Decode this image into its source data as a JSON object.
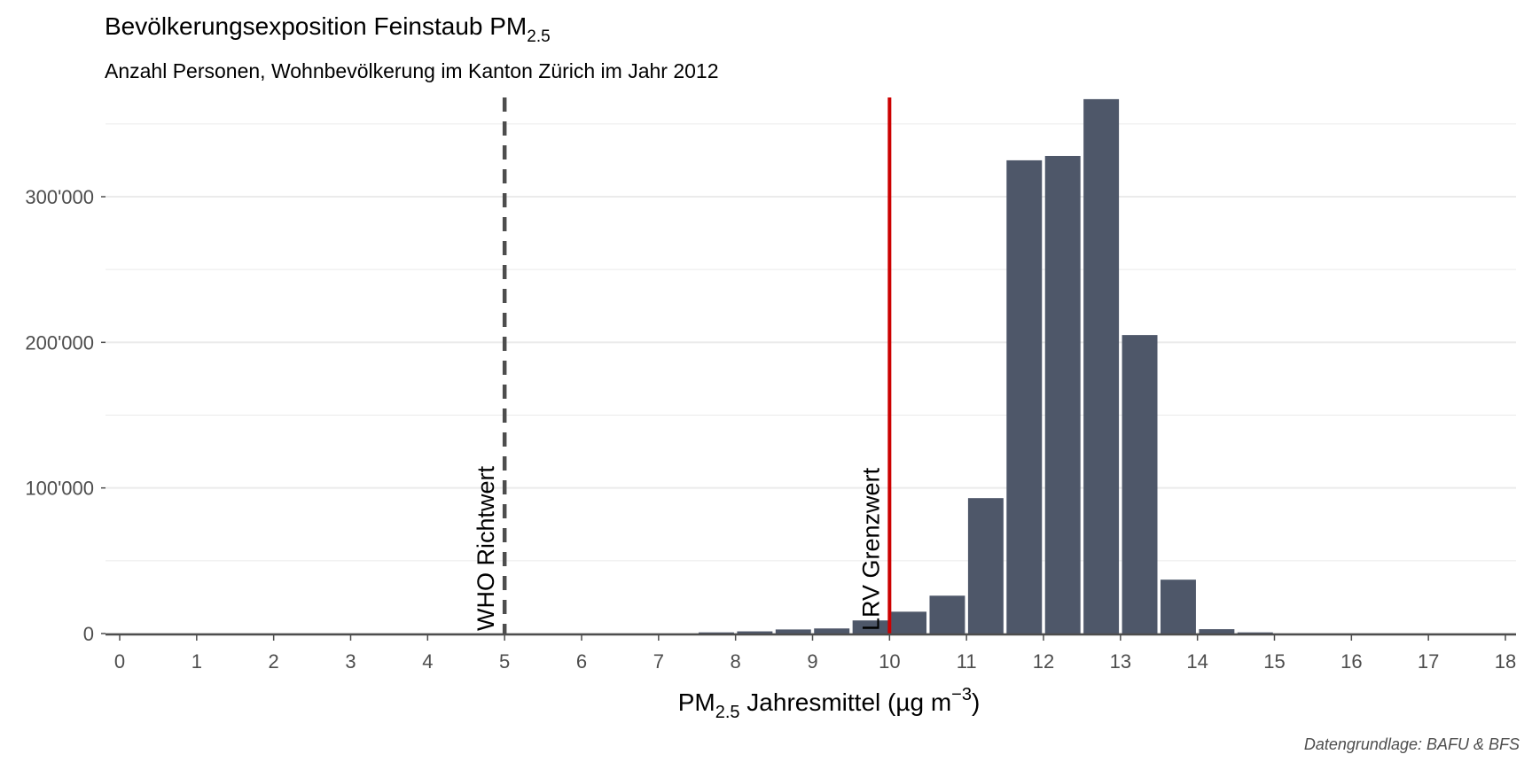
{
  "chart_data": {
    "type": "bar",
    "title": {
      "main": "Bevölkerungsexposition Feinstaub PM",
      "sub": "2.5"
    },
    "subtitle": "Anzahl Personen, Wohnbevölkerung im Kanton Zürich im Jahr 2012",
    "xlabel": {
      "pre": "PM",
      "sub": "2.5",
      "mid": " Jahresmittel (µg m",
      "sup": "−3",
      "post": ")"
    },
    "ylabel": "",
    "caption": "Datengrundlage: BAFU & BFS",
    "xlim": [
      0,
      18
    ],
    "ylim": [
      0,
      370000
    ],
    "x_ticks": [
      0,
      1,
      2,
      3,
      4,
      5,
      6,
      7,
      8,
      9,
      10,
      11,
      12,
      13,
      14,
      15,
      16,
      17,
      18
    ],
    "x_tick_labels": [
      "0",
      "1",
      "2",
      "3",
      "4",
      "5",
      "6",
      "7",
      "8",
      "9",
      "10",
      "11",
      "12",
      "13",
      "14",
      "15",
      "16",
      "17",
      "18"
    ],
    "y_ticks": [
      0,
      100000,
      200000,
      300000
    ],
    "y_tick_labels": [
      "0",
      "100'000",
      "200'000",
      "300'000"
    ],
    "bar_width": 0.46,
    "bars": [
      {
        "x": 7.75,
        "value": 800
      },
      {
        "x": 8.25,
        "value": 1500
      },
      {
        "x": 8.75,
        "value": 2800
      },
      {
        "x": 9.25,
        "value": 3500
      },
      {
        "x": 9.75,
        "value": 9000
      },
      {
        "x": 10.25,
        "value": 15000
      },
      {
        "x": 10.75,
        "value": 26000
      },
      {
        "x": 11.25,
        "value": 93000
      },
      {
        "x": 11.75,
        "value": 325000
      },
      {
        "x": 12.25,
        "value": 328000
      },
      {
        "x": 12.75,
        "value": 367000
      },
      {
        "x": 13.25,
        "value": 205000
      },
      {
        "x": 13.75,
        "value": 37000
      },
      {
        "x": 14.25,
        "value": 3000
      },
      {
        "x": 14.75,
        "value": 800
      }
    ],
    "reference_lines": [
      {
        "x": 5,
        "label": "WHO Richtwert",
        "style": "dashed",
        "color": "#4d4d4d"
      },
      {
        "x": 10,
        "label": "LRV Grenzwert",
        "style": "solid",
        "color": "#cc0000"
      }
    ],
    "colors": {
      "bar": "#4e5769",
      "grid": "#ebebeb",
      "axis": "#4d4d4d"
    },
    "grid": true
  }
}
